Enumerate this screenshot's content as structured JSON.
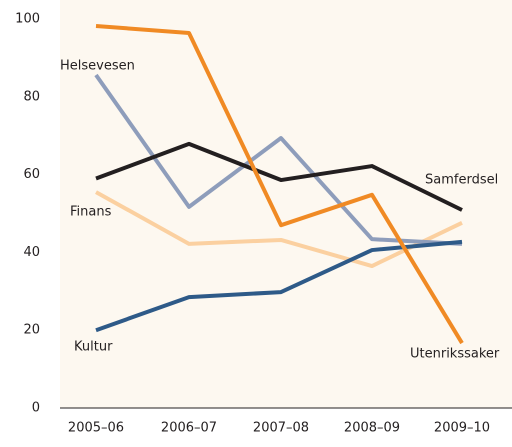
{
  "chart_data": {
    "type": "line",
    "categories": [
      "2005–06",
      "2006–07",
      "2007–08",
      "2008–09",
      "2009–10"
    ],
    "series": [
      {
        "name": "Finans",
        "color": "#fbd0a0",
        "values": [
          55.5,
          42.2,
          43.2,
          36.5,
          47.6
        ]
      },
      {
        "name": "Helsevesen",
        "color": "#8e9dbb",
        "values": [
          85.6,
          51.7,
          69.4,
          43.4,
          42.2
        ]
      },
      {
        "name": "Kultur",
        "color": "#2e5a88",
        "values": [
          20,
          28.5,
          29.8,
          40.6,
          42.7
        ]
      },
      {
        "name": "Samferdsel",
        "color": "#231f20",
        "values": [
          59,
          67.9,
          58.6,
          62.2,
          50.9
        ]
      },
      {
        "name": "Utenrikssaker",
        "color": "#f08a24",
        "values": [
          98.2,
          96.4,
          47,
          54.8,
          16.7
        ]
      }
    ],
    "ylim": [
      0,
      100
    ],
    "yticks": [
      0,
      20,
      40,
      60,
      80,
      100
    ],
    "grid": false
  }
}
